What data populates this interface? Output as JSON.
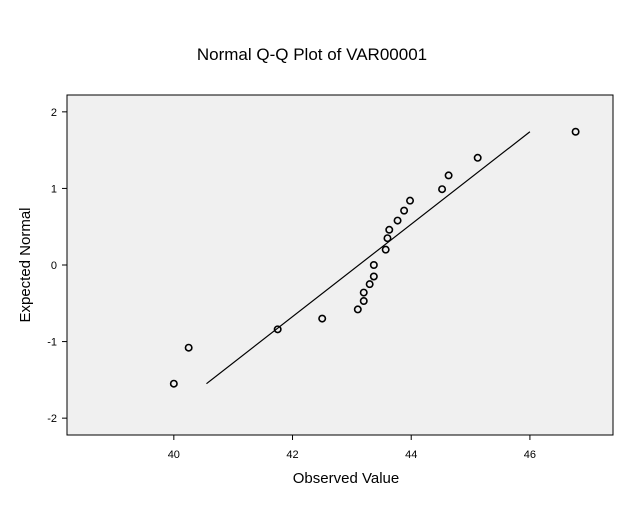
{
  "chart_data": {
    "type": "scatter",
    "title": "Normal Q-Q Plot of VAR00001",
    "xlabel": "Observed Value",
    "ylabel": "Expected Normal",
    "xlim": [
      38.2,
      47.4
    ],
    "ylim": [
      -2.22,
      2.22
    ],
    "x_ticks": [
      40,
      42,
      44,
      46
    ],
    "x_tick_labels": [
      "40",
      "42",
      "44",
      "46"
    ],
    "y_ticks": [
      2,
      1,
      0,
      -1,
      -2
    ],
    "y_tick_labels": [
      "2",
      "1",
      "0",
      "-1",
      "-2"
    ],
    "grid": false,
    "plot_background": "#f0f0f0",
    "marker_color": "#000000",
    "points": [
      {
        "x": 40.0,
        "y": -1.55
      },
      {
        "x": 40.25,
        "y": -1.08
      },
      {
        "x": 41.75,
        "y": -0.84
      },
      {
        "x": 42.5,
        "y": -0.7
      },
      {
        "x": 43.1,
        "y": -0.58
      },
      {
        "x": 43.2,
        "y": -0.47
      },
      {
        "x": 43.2,
        "y": -0.36
      },
      {
        "x": 43.3,
        "y": -0.25
      },
      {
        "x": 43.37,
        "y": -0.15
      },
      {
        "x": 43.37,
        "y": 0.0
      },
      {
        "x": 43.57,
        "y": 0.2
      },
      {
        "x": 43.6,
        "y": 0.35
      },
      {
        "x": 43.63,
        "y": 0.46
      },
      {
        "x": 43.77,
        "y": 0.58
      },
      {
        "x": 43.88,
        "y": 0.71
      },
      {
        "x": 43.98,
        "y": 0.84
      },
      {
        "x": 44.52,
        "y": 0.99
      },
      {
        "x": 44.63,
        "y": 1.17
      },
      {
        "x": 45.12,
        "y": 1.4
      },
      {
        "x": 46.77,
        "y": 1.74
      }
    ],
    "reference_line": {
      "x": [
        40.55,
        46.0
      ],
      "y": [
        -1.55,
        1.74
      ]
    }
  }
}
